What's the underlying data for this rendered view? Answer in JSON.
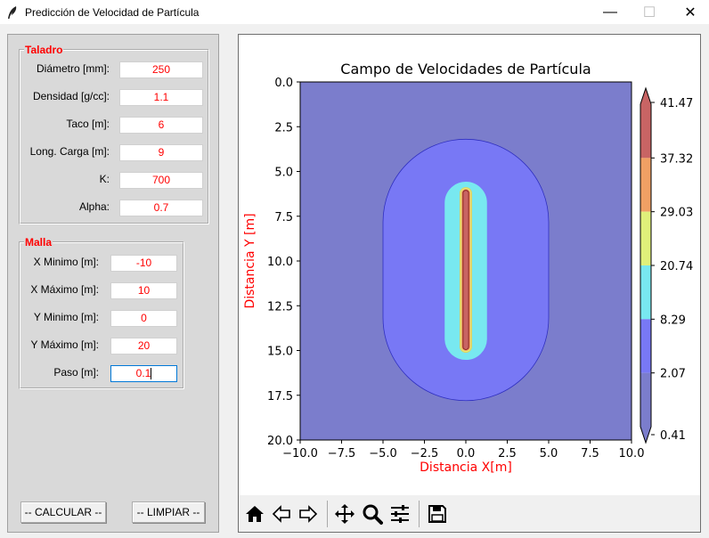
{
  "window": {
    "title": "Predicción de Velocidad de Partícula",
    "minimize": "—",
    "maximize": "☐",
    "close": "✕"
  },
  "taladro": {
    "legend": "Taladro",
    "fields": [
      {
        "label": "Diámetro [mm]:",
        "value": "250"
      },
      {
        "label": "Densidad [g/cc]:",
        "value": "1.1"
      },
      {
        "label": "Taco [m]:",
        "value": "6"
      },
      {
        "label": "Long. Carga [m]:",
        "value": "9"
      },
      {
        "label": "K:",
        "value": "700"
      },
      {
        "label": "Alpha:",
        "value": "0.7"
      }
    ]
  },
  "malla": {
    "legend": "Malla",
    "fields": [
      {
        "label": "X Minimo [m]:",
        "value": "-10"
      },
      {
        "label": "X Máximo [m]:",
        "value": "10"
      },
      {
        "label": "Y Minimo [m]:",
        "value": "0"
      },
      {
        "label": "Y Máximo [m]:",
        "value": "20"
      },
      {
        "label": "Paso [m]:",
        "value": "0.1"
      }
    ]
  },
  "buttons": {
    "calcular": "-- CALCULAR --",
    "limpiar": "-- LIMPIAR --"
  },
  "toolbar": {
    "icons": [
      "home-icon",
      "back-icon",
      "forward-icon",
      "pan-icon",
      "zoom-icon",
      "configure-subplots-icon",
      "save-icon"
    ]
  },
  "chart_data": {
    "type": "contourf",
    "title": "Campo de Velocidades de Partícula",
    "xlabel": "Distancia X[m]",
    "ylabel": "Distancia Y [m]",
    "xlim": [
      -10.0,
      10.0
    ],
    "ylim": [
      20.0,
      0.0
    ],
    "y_inverted": true,
    "x_ticks": [
      "−10.0",
      "−7.5",
      "−5.0",
      "−2.5",
      "0.0",
      "2.5",
      "5.0",
      "7.5",
      "10.0"
    ],
    "x_tick_values": [
      -10.0,
      -7.5,
      -5.0,
      -2.5,
      0.0,
      2.5,
      5.0,
      7.5,
      10.0
    ],
    "y_ticks": [
      "0.0",
      "2.5",
      "5.0",
      "7.5",
      "10.0",
      "12.5",
      "15.0",
      "17.5",
      "20.0"
    ],
    "y_tick_values": [
      0.0,
      2.5,
      5.0,
      7.5,
      10.0,
      12.5,
      15.0,
      17.5,
      20.0
    ],
    "colorbar_levels": [
      "41.47",
      "37.32",
      "29.03",
      "20.74",
      "8.29",
      "2.07",
      "0.41"
    ],
    "colorbar_colors": [
      "#c86464",
      "#f0a064",
      "#e0f07a",
      "#78e8f0",
      "#7878f5",
      "#7b7dcc"
    ],
    "charge": {
      "x": 0.0,
      "y_top": 6.0,
      "y_bottom": 15.0
    },
    "contours": [
      {
        "level": "2.07",
        "x_halfwidth": 5.0,
        "y_top": 3.2,
        "y_bottom": 17.8,
        "color": "#7878f5",
        "edge": "#3030c0"
      },
      {
        "level": "8.29",
        "x_halfwidth": 1.25,
        "y_top": 5.6,
        "y_bottom": 15.5,
        "color": "#78e8f0",
        "edge": "#78e8f0"
      },
      {
        "level": "20.74",
        "x_halfwidth": 0.35,
        "y_top": 5.9,
        "y_bottom": 15.1,
        "color": "#e0f07a",
        "edge": "#e0d060"
      },
      {
        "level": "37.32",
        "x_halfwidth": 0.25,
        "y_top": 6.0,
        "y_bottom": 15.0,
        "color": "#f0a064",
        "edge": "#f0a064"
      },
      {
        "level": "41.47",
        "x_halfwidth": 0.17,
        "y_top": 6.05,
        "y_bottom": 14.95,
        "color": "#c86464",
        "edge": "#8a2020"
      }
    ],
    "background_color": "#7b7dcc"
  }
}
